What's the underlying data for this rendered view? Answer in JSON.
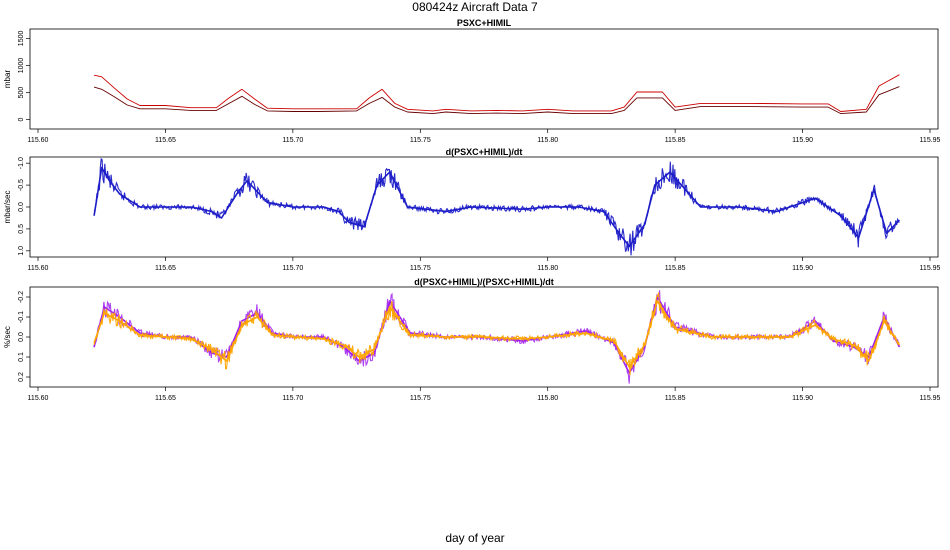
{
  "page": {
    "title": "080424z   Aircraft Data 7",
    "xlabel": "day of year"
  },
  "chart_data": [
    {
      "type": "line",
      "title": "PSXC+HIMIL",
      "ylabel": "mbar",
      "xlim": [
        115.6,
        115.95
      ],
      "ylim": [
        -100,
        1600
      ],
      "x_ticks": [
        "115.60",
        "115.65",
        "115.70",
        "115.75",
        "115.80",
        "115.85",
        "115.90",
        "115.95"
      ],
      "y_ticks": [
        "0",
        "500",
        "1000",
        "1500"
      ],
      "series": [
        {
          "color": "#cc0000",
          "x": [
            115.622,
            115.625,
            115.63,
            115.635,
            115.64,
            115.65,
            115.66,
            115.67,
            115.675,
            115.68,
            115.685,
            115.69,
            115.7,
            115.71,
            115.725,
            115.73,
            115.735,
            115.74,
            115.745,
            115.755,
            115.76,
            115.77,
            115.78,
            115.79,
            115.8,
            115.81,
            115.825,
            115.83,
            115.835,
            115.845,
            115.85,
            115.86,
            115.87,
            115.88,
            115.9,
            115.91,
            115.915,
            115.925,
            115.93,
            115.938
          ],
          "values": [
            820,
            790,
            580,
            380,
            260,
            260,
            220,
            220,
            400,
            560,
            380,
            210,
            200,
            200,
            200,
            400,
            560,
            300,
            190,
            160,
            190,
            160,
            170,
            160,
            190,
            160,
            160,
            230,
            510,
            510,
            230,
            300,
            300,
            300,
            290,
            290,
            150,
            190,
            620,
            830
          ]
        },
        {
          "color": "#660000",
          "x": [
            115.622,
            115.625,
            115.63,
            115.635,
            115.64,
            115.65,
            115.66,
            115.67,
            115.675,
            115.68,
            115.685,
            115.69,
            115.7,
            115.71,
            115.725,
            115.73,
            115.735,
            115.74,
            115.745,
            115.755,
            115.76,
            115.77,
            115.78,
            115.79,
            115.8,
            115.81,
            115.825,
            115.83,
            115.835,
            115.845,
            115.85,
            115.86,
            115.87,
            115.88,
            115.9,
            115.91,
            115.915,
            115.925,
            115.93,
            115.938
          ],
          "values": [
            600,
            560,
            420,
            270,
            200,
            200,
            170,
            170,
            300,
            430,
            280,
            160,
            150,
            150,
            160,
            300,
            410,
            230,
            140,
            110,
            140,
            110,
            120,
            110,
            140,
            110,
            110,
            170,
            400,
            400,
            170,
            240,
            240,
            240,
            230,
            230,
            110,
            140,
            460,
            610
          ]
        }
      ]
    },
    {
      "type": "line",
      "title": "d(PSXC+HIMIL)/dt",
      "ylabel": "mbar/sec",
      "xlim": [
        115.6,
        115.95
      ],
      "ylim": [
        1.05,
        -1.05
      ],
      "x_ticks": [
        "115.60",
        "115.65",
        "115.70",
        "115.75",
        "115.80",
        "115.85",
        "115.90",
        "115.95"
      ],
      "y_ticks": [
        "1.0",
        "0.5",
        "0.0",
        "-0.5",
        "-1.0"
      ],
      "series": [
        {
          "color": "#1c1cc8",
          "x": [
            115.622,
            115.625,
            115.628,
            115.632,
            115.64,
            115.65,
            115.66,
            115.668,
            115.672,
            115.678,
            115.682,
            115.69,
            115.7,
            115.712,
            115.718,
            115.722,
            115.728,
            115.733,
            115.738,
            115.745,
            115.76,
            115.77,
            115.79,
            115.8,
            115.812,
            115.822,
            115.828,
            115.832,
            115.838,
            115.842,
            115.848,
            115.86,
            115.875,
            115.89,
            115.905,
            115.915,
            115.922,
            115.928,
            115.933,
            115.938
          ],
          "values": [
            0.2,
            -0.9,
            -0.6,
            -0.3,
            0.0,
            0.0,
            0.0,
            0.1,
            0.25,
            -0.3,
            -0.6,
            -0.1,
            0.0,
            0.0,
            0.1,
            0.35,
            0.45,
            -0.5,
            -0.8,
            0.0,
            0.1,
            0.0,
            0.05,
            0.0,
            0.0,
            0.1,
            0.6,
            0.9,
            0.4,
            -0.5,
            -0.8,
            0.0,
            0.0,
            0.1,
            -0.2,
            0.2,
            0.7,
            -0.4,
            0.6,
            0.3
          ]
        }
      ]
    },
    {
      "type": "line",
      "title": "d(PSXC+HIMIL)/(PSXC+HIMIL)/dt",
      "ylabel": "%/sec",
      "xlim": [
        115.6,
        115.95
      ],
      "ylim": [
        0.23,
        -0.23
      ],
      "x_ticks": [
        "115.60",
        "115.65",
        "115.70",
        "115.75",
        "115.80",
        "115.85",
        "115.90",
        "115.95"
      ],
      "y_ticks": [
        "0.2",
        "0.1",
        "0.0",
        "-0.1",
        "-0.2"
      ],
      "series": [
        {
          "color": "#a020f0",
          "x": [
            115.622,
            115.626,
            115.632,
            115.64,
            115.65,
            115.66,
            115.668,
            115.674,
            115.68,
            115.686,
            115.692,
            115.7,
            115.712,
            115.72,
            115.726,
            115.732,
            115.738,
            115.746,
            115.76,
            115.775,
            115.79,
            115.8,
            115.815,
            115.826,
            115.832,
            115.838,
            115.843,
            115.85,
            115.865,
            115.88,
            115.895,
            115.905,
            115.912,
            115.92,
            115.926,
            115.932,
            115.938
          ],
          "values": [
            0.05,
            -0.15,
            -0.1,
            -0.02,
            0.0,
            0.0,
            0.08,
            0.1,
            -0.08,
            -0.12,
            -0.02,
            0.0,
            0.0,
            0.05,
            0.12,
            0.08,
            -0.18,
            -0.02,
            0.0,
            0.0,
            0.02,
            0.0,
            -0.03,
            0.03,
            0.18,
            0.05,
            -0.2,
            -0.05,
            0.0,
            0.0,
            0.0,
            -0.08,
            0.02,
            0.05,
            0.1,
            -0.1,
            0.05
          ]
        },
        {
          "color": "#ffa500",
          "x": [
            115.622,
            115.626,
            115.632,
            115.64,
            115.65,
            115.66,
            115.668,
            115.674,
            115.68,
            115.686,
            115.692,
            115.7,
            115.712,
            115.72,
            115.726,
            115.732,
            115.738,
            115.746,
            115.76,
            115.775,
            115.79,
            115.8,
            115.815,
            115.826,
            115.832,
            115.838,
            115.843,
            115.85,
            115.865,
            115.88,
            115.895,
            115.905,
            115.912,
            115.92,
            115.926,
            115.932,
            115.938
          ],
          "values": [
            0.03,
            -0.12,
            -0.08,
            -0.01,
            0.0,
            0.01,
            0.06,
            0.12,
            -0.06,
            -0.1,
            -0.01,
            0.0,
            0.01,
            0.04,
            0.1,
            0.06,
            -0.15,
            -0.01,
            0.0,
            0.0,
            0.01,
            0.0,
            -0.02,
            0.02,
            0.15,
            0.04,
            -0.18,
            -0.04,
            0.0,
            0.0,
            0.0,
            -0.06,
            0.01,
            0.04,
            0.12,
            -0.08,
            0.04
          ]
        }
      ]
    }
  ]
}
